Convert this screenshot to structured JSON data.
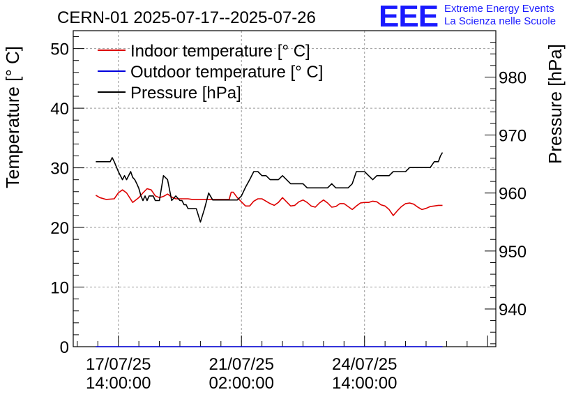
{
  "chart_data": {
    "type": "line",
    "title": "CERN-01 2025-07-17--2025-07-26",
    "ylabel": "Temperature [° C]",
    "y2label": "Pressure [hPa]",
    "xlabel": "",
    "ylim": [
      0,
      53
    ],
    "y2lim": [
      933.5,
      988
    ],
    "xlim": [
      -1.1,
      9.2
    ],
    "yticks": [
      0,
      10,
      20,
      30,
      40,
      50
    ],
    "y2ticks": [
      940,
      950,
      960,
      970,
      980
    ],
    "grid": true,
    "legend_position": "top-left",
    "xticks": [
      {
        "x": 0,
        "line1": "17/07/25",
        "line2": "14:00:00"
      },
      {
        "x": 3,
        "line1": "21/07/25",
        "line2": "02:00:00"
      },
      {
        "x": 6,
        "line1": "24/07/25",
        "line2": "14:00:00"
      }
    ],
    "series": [
      {
        "name": "Indoor temperature [° C]",
        "color": "#dd0000",
        "axis": "left",
        "x": [
          -0.55,
          -0.45,
          -0.3,
          -0.1,
          0.0,
          0.1,
          0.2,
          0.35,
          0.5,
          0.6,
          0.7,
          0.8,
          0.9,
          1.0,
          1.1,
          1.2,
          1.3,
          1.4,
          1.5,
          1.6,
          1.7,
          1.8,
          1.9,
          2.0,
          2.1,
          2.2,
          2.3,
          2.4,
          2.5,
          2.6,
          2.7,
          2.75,
          2.8,
          2.9,
          3.0,
          3.1,
          3.2,
          3.3,
          3.4,
          3.5,
          3.6,
          3.7,
          3.8,
          3.9,
          4.0,
          4.1,
          4.2,
          4.3,
          4.4,
          4.5,
          4.6,
          4.7,
          4.8,
          4.9,
          5.0,
          5.1,
          5.2,
          5.3,
          5.4,
          5.5,
          5.6,
          5.7,
          5.8,
          5.9,
          6.0,
          6.1,
          6.2,
          6.3,
          6.4,
          6.5,
          6.6,
          6.7,
          6.8,
          6.9,
          7.0,
          7.1,
          7.2,
          7.3,
          7.4,
          7.5,
          7.6,
          7.7,
          7.8,
          7.9
        ],
        "y": [
          25.4,
          25.0,
          24.7,
          24.8,
          25.8,
          26.3,
          25.8,
          24.2,
          25.0,
          25.8,
          26.5,
          26.3,
          25.3,
          25.0,
          25.2,
          25.6,
          25.1,
          24.8,
          24.8,
          24.8,
          24.8,
          24.7,
          24.7,
          24.7,
          24.7,
          24.7,
          24.7,
          24.7,
          24.7,
          24.7,
          24.7,
          25.9,
          25.9,
          25.0,
          24.3,
          23.6,
          23.6,
          24.4,
          24.8,
          24.8,
          24.4,
          24.0,
          23.7,
          24.2,
          25.0,
          24.3,
          23.6,
          23.7,
          24.3,
          24.6,
          24.2,
          23.6,
          23.4,
          24.1,
          24.6,
          24.1,
          23.4,
          23.5,
          24.0,
          24.0,
          23.5,
          23.0,
          23.6,
          24.1,
          24.2,
          24.2,
          24.4,
          24.3,
          23.8,
          23.6,
          23.0,
          22.0,
          22.8,
          23.5,
          24.0,
          24.1,
          23.9,
          23.4,
          23.0,
          23.2,
          23.5,
          23.6,
          23.7,
          23.7
        ]
      },
      {
        "name": "Outdoor temperature [° C]",
        "color": "#0000dd",
        "axis": "left",
        "x": [
          -0.55,
          7.9
        ],
        "y": [
          0.0,
          0.0
        ]
      },
      {
        "name": "Pressure [hPa]",
        "color": "#000000",
        "axis": "right",
        "x": [
          -0.55,
          -0.2,
          -0.15,
          -0.1,
          0.0,
          0.1,
          0.15,
          0.2,
          0.3,
          0.35,
          0.4,
          0.45,
          0.5,
          0.55,
          0.6,
          0.65,
          0.7,
          0.75,
          0.85,
          0.9,
          0.95,
          1.0,
          1.1,
          1.2,
          1.3,
          1.4,
          1.5,
          1.55,
          1.6,
          1.65,
          1.7,
          1.8,
          1.9,
          2.0,
          2.1,
          2.2,
          2.3,
          2.4,
          2.5,
          2.6,
          2.7,
          2.8,
          2.9,
          3.0,
          3.1,
          3.2,
          3.3,
          3.4,
          3.5,
          3.6,
          3.7,
          3.8,
          3.9,
          4.0,
          4.1,
          4.2,
          4.3,
          4.4,
          4.5,
          4.6,
          4.7,
          4.8,
          4.9,
          5.0,
          5.1,
          5.2,
          5.3,
          5.4,
          5.5,
          5.6,
          5.7,
          5.8,
          5.9,
          6.0,
          6.1,
          6.2,
          6.3,
          6.4,
          6.5,
          6.6,
          6.7,
          6.8,
          6.9,
          7.0,
          7.1,
          7.2,
          7.3,
          7.4,
          7.5,
          7.6,
          7.7,
          7.8,
          7.85,
          7.9
        ],
        "y": [
          965.4,
          965.4,
          966.1,
          965.4,
          963.7,
          962.3,
          963.0,
          962.3,
          963.7,
          962.7,
          962.3,
          961.6,
          960.8,
          959.5,
          958.7,
          959.5,
          958.7,
          959.5,
          959.5,
          958.7,
          958.7,
          958.7,
          963.0,
          962.3,
          958.7,
          959.5,
          958.7,
          958.7,
          958.0,
          958.0,
          957.3,
          957.3,
          957.3,
          955.0,
          957.3,
          960.0,
          958.8,
          958.8,
          958.8,
          958.8,
          958.8,
          958.8,
          958.8,
          959.5,
          961.0,
          962.3,
          963.7,
          963.7,
          963.0,
          963.0,
          962.3,
          962.3,
          962.3,
          963.0,
          962.3,
          961.6,
          961.6,
          961.6,
          961.6,
          960.9,
          960.9,
          960.9,
          960.9,
          960.9,
          960.9,
          961.6,
          960.9,
          960.9,
          960.9,
          960.9,
          961.6,
          963.7,
          963.7,
          963.7,
          963.0,
          962.3,
          963.0,
          963.0,
          963.0,
          963.0,
          963.7,
          963.7,
          963.7,
          963.7,
          964.4,
          964.4,
          964.4,
          964.4,
          964.4,
          964.4,
          965.4,
          965.4,
          966.4,
          967.0
        ]
      }
    ]
  },
  "logo": {
    "mark": "EEE",
    "line1": "Extreme Energy Events",
    "line2": "La Scienza nelle Scuole"
  }
}
